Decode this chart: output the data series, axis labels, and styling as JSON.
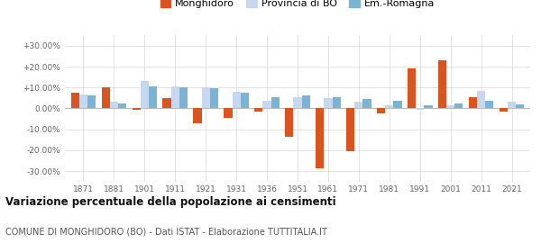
{
  "years": [
    1871,
    1881,
    1901,
    1911,
    1921,
    1931,
    1936,
    1951,
    1961,
    1971,
    1981,
    1991,
    2001,
    2011,
    2021
  ],
  "monghidoro": [
    7.5,
    10.2,
    -0.5,
    5.0,
    -7.0,
    -4.5,
    -1.5,
    -13.5,
    -28.5,
    -20.5,
    -2.5,
    19.0,
    23.0,
    5.5,
    -1.5
  ],
  "provincia_bo": [
    6.5,
    3.0,
    13.0,
    10.5,
    10.0,
    8.0,
    3.5,
    5.5,
    5.0,
    3.0,
    1.5,
    -0.5,
    1.5,
    8.5,
    3.0
  ],
  "emilia_romagna": [
    6.0,
    2.5,
    10.5,
    10.0,
    9.5,
    7.5,
    5.5,
    6.0,
    5.5,
    4.5,
    3.5,
    1.5,
    2.5,
    3.5,
    2.0
  ],
  "color_monghidoro": "#d9541e",
  "color_provincia": "#c5d8f0",
  "color_emilia": "#7ab4d4",
  "ylim": [
    -35,
    35
  ],
  "yticks": [
    -30,
    -20,
    -10,
    0,
    10,
    20,
    30
  ],
  "ytick_labels": [
    "-30.00%",
    "-20.00%",
    "-10.00%",
    "0.00%",
    "+10.00%",
    "+20.00%",
    "+30.00%"
  ],
  "title": "Variazione percentuale della popolazione ai censimenti",
  "subtitle": "COMUNE DI MONGHIDORO (BO) - Dati ISTAT - Elaborazione TUTTITALIA.IT",
  "legend_labels": [
    "Monghidoro",
    "Provincia di BO",
    "Em.-Romagna"
  ],
  "background_color": "#ffffff",
  "grid_color": "#d8d8d8"
}
